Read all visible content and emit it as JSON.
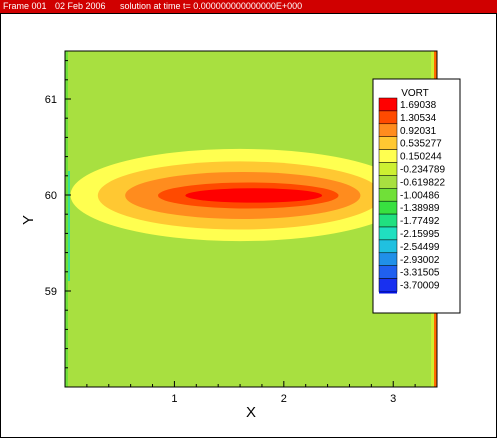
{
  "frame_header": {
    "frame": "Frame 001",
    "date": "02 Feb 2006",
    "solution": "solution at time t=  0.000000000000000E+000"
  },
  "colors": {
    "header_bar": "#d00000",
    "background_field": "#a8e040",
    "contour_levels": [
      "#ff0000",
      "#ff4a00",
      "#ff8c1e",
      "#ffc832",
      "#ffff50",
      "#cdf032",
      "#a8e040",
      "#70e038",
      "#38e040",
      "#20e080",
      "#20e0c0",
      "#20c0e0",
      "#2090e8",
      "#2060f0",
      "#1830f0",
      "#0010e0"
    ]
  },
  "chart_data": {
    "type": "heatmap",
    "title": "",
    "xlabel": "X",
    "ylabel": "Y",
    "xlim": [
      0,
      3.4
    ],
    "ylim": [
      58.0,
      61.5
    ],
    "xticks": [
      1,
      2,
      3
    ],
    "yticks": [
      59,
      60,
      61
    ],
    "legend": {
      "title": "VORT",
      "placement": "top-right",
      "levels": [
        "1.69038",
        "1.30534",
        "0.92031",
        "0.535277",
        "0.150244",
        "-0.234789",
        "-0.619822",
        "-1.00486",
        "-1.38989",
        "-1.77492",
        "-2.15995",
        "-2.54499",
        "-2.93002",
        "-3.31505",
        "-3.70009"
      ]
    },
    "vortex_contours": [
      {
        "level": "0.150244",
        "x_range": [
          0.05,
          3.15
        ],
        "y_range": [
          59.52,
          60.48
        ]
      },
      {
        "level": "0.535277",
        "x_range": [
          0.3,
          2.9
        ],
        "y_range": [
          59.64,
          60.35
        ]
      },
      {
        "level": "0.92031",
        "x_range": [
          0.55,
          2.7
        ],
        "y_range": [
          59.75,
          60.24
        ]
      },
      {
        "level": "1.30534",
        "x_range": [
          0.85,
          2.5
        ],
        "y_range": [
          59.86,
          60.13
        ]
      },
      {
        "level": "1.69038",
        "x_range": [
          1.1,
          2.35
        ],
        "y_range": [
          59.92,
          60.07
        ]
      }
    ]
  }
}
